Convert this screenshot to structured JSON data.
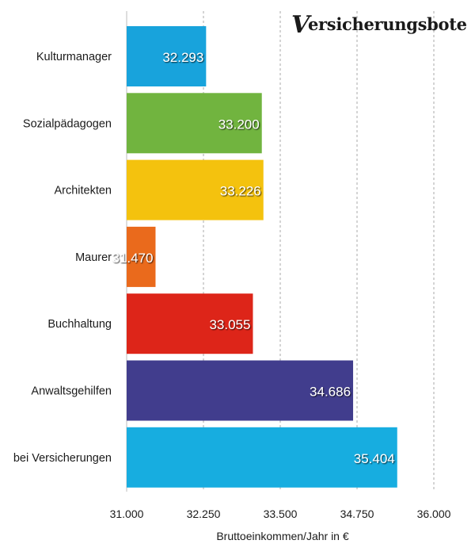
{
  "logo": {
    "initial": "V",
    "rest": "ersicherungsbote"
  },
  "chart_data": {
    "type": "bar",
    "orientation": "horizontal",
    "categories": [
      "Kulturmanager",
      "Sozialpädagogen",
      "Architekten",
      "Maurer",
      "Buchhaltung",
      "Anwaltsgehilfen",
      "bei Versicherungen"
    ],
    "values": [
      32293,
      33200,
      33226,
      31470,
      33055,
      34686,
      35404
    ],
    "value_labels": [
      "32.293",
      "33.200",
      "33.226",
      "31.470",
      "33.055",
      "34.686",
      "35.404"
    ],
    "colors": [
      "#18a3dc",
      "#71b43f",
      "#f4c20e",
      "#ea6a1c",
      "#dd2519",
      "#413d8d",
      "#17ade0"
    ],
    "xlabel": "Bruttoeinkommen/Jahr in €",
    "xlim": [
      31000,
      36500
    ],
    "xticks": [
      31000,
      32250,
      33500,
      34750,
      36000
    ],
    "xtick_labels": [
      "31.000",
      "32.250",
      "33.500",
      "34.750",
      "36.000"
    ],
    "grid": "vertical dashed"
  }
}
